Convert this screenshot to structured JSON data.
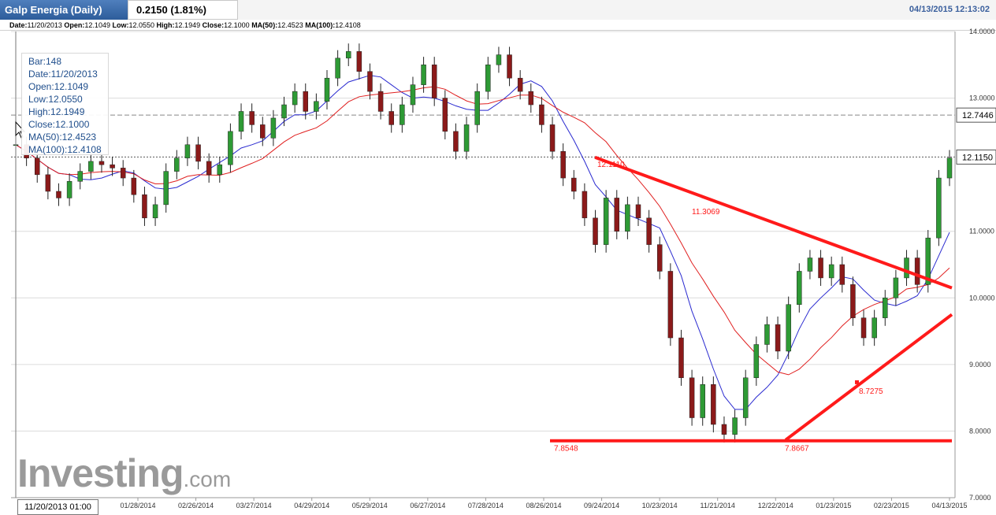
{
  "header": {
    "title": "Galp Energia (Daily)",
    "change": "0.2150 (1.81%)",
    "datetime": "04/13/2015 12:13:02"
  },
  "info_bar": {
    "date_label": "Date:",
    "date": "11/20/2013",
    "open_label": "Open:",
    "open": "12.1049",
    "low_label": "Low:",
    "low": "12.0550",
    "high_label": "High:",
    "high": "12.1949",
    "close_label": "Close:",
    "close": "12.1000",
    "ma50_label": "MA(50):",
    "ma50": "12.4523",
    "ma100_label": "MA(100):",
    "ma100": "12.4108"
  },
  "tooltip": {
    "bar": "Bar:148",
    "date": "Date:11/20/2013",
    "open": "Open:12.1049",
    "low": "Low:12.0550",
    "high": "High:12.1949",
    "close": "Close:12.1000",
    "ma50": "MA(50):12.4523",
    "ma100": "MA(100):12.4108"
  },
  "logo": {
    "main": "Investing",
    "suffix": ".com"
  },
  "cursor_date": "11/20/2013 01:00",
  "colors": {
    "up": "#2e9a35",
    "down": "#8b1a1a",
    "ma50": "#2a2ad0",
    "ma100": "#e02020",
    "trendline": "#ff1a1a",
    "grid": "#dcdcdc",
    "title_bg": "#3d6aa9"
  },
  "chart_data": {
    "type": "candlestick",
    "title": "Galp Energia (Daily)",
    "ylim": [
      7.0,
      14.0
    ],
    "x_ticks": [
      "01/28/2014",
      "02/26/2014",
      "03/27/2014",
      "04/29/2014",
      "05/29/2014",
      "06/27/2014",
      "07/28/2014",
      "08/26/2014",
      "09/24/2014",
      "10/23/2014",
      "11/21/2014",
      "12/22/2014",
      "01/23/2015",
      "02/23/2015",
      "04/13/2015"
    ],
    "y_ticks": [
      "14.0000",
      "13.0000",
      "11.0000",
      "10.0000",
      "9.0000",
      "8.0000",
      "7.0000"
    ],
    "price_labels": [
      {
        "value": 12.7446,
        "text": "12.7446"
      },
      {
        "value": 12.115,
        "text": "12.1150"
      }
    ],
    "annotations": [
      "12.1110",
      "11.3069",
      "7.8548",
      "7.8667",
      "8.7275"
    ],
    "close_series": [
      12.3,
      12.1,
      11.85,
      11.6,
      11.5,
      11.75,
      11.9,
      12.05,
      12.0,
      11.95,
      11.8,
      11.55,
      11.2,
      11.4,
      11.9,
      12.1,
      12.3,
      12.05,
      11.85,
      12.0,
      12.5,
      12.8,
      12.6,
      12.4,
      12.7,
      12.9,
      13.1,
      12.8,
      12.95,
      13.3,
      13.6,
      13.7,
      13.4,
      13.1,
      12.8,
      12.6,
      12.9,
      13.2,
      13.5,
      13.0,
      12.5,
      12.2,
      12.6,
      13.1,
      13.5,
      13.65,
      13.3,
      13.1,
      12.9,
      12.6,
      12.2,
      11.8,
      11.6,
      11.2,
      10.8,
      11.5,
      11.0,
      11.4,
      11.2,
      10.8,
      10.4,
      9.4,
      8.8,
      8.2,
      8.7,
      8.1,
      7.95,
      8.2,
      8.8,
      9.3,
      9.6,
      9.2,
      9.9,
      10.4,
      10.6,
      10.3,
      10.5,
      10.2,
      9.7,
      9.4,
      9.7,
      10.0,
      10.3,
      10.6,
      10.2,
      10.9,
      11.8,
      12.1
    ]
  }
}
